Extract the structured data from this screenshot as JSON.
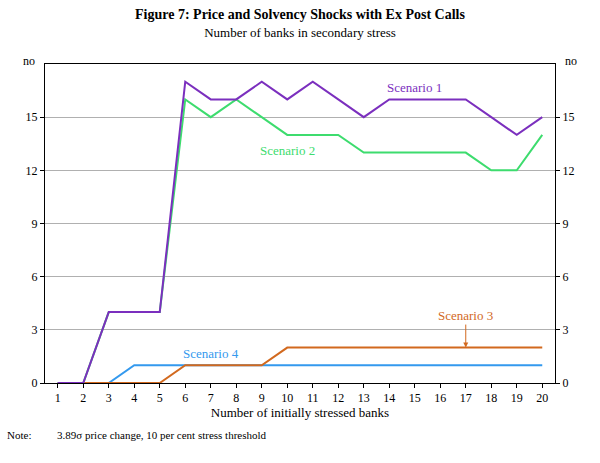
{
  "chart_data": {
    "type": "line",
    "title": "Figure 7: Price and Solvency Shocks with Ex Post Calls",
    "subtitle": "Number of banks in secondary stress",
    "x_label": "Number of initially stressed banks",
    "y_label": "no",
    "y2_label": "no",
    "note_label": "Note:",
    "note": "3.89σ price change, 10 per cent stress threshold",
    "x": [
      1,
      2,
      3,
      4,
      5,
      6,
      7,
      8,
      9,
      10,
      11,
      12,
      13,
      14,
      15,
      16,
      17,
      18,
      19,
      20
    ],
    "xlim": [
      0.5,
      20.5
    ],
    "xticks": [
      1,
      2,
      3,
      4,
      5,
      6,
      7,
      8,
      9,
      10,
      11,
      12,
      13,
      14,
      15,
      16,
      17,
      18,
      19,
      20
    ],
    "ylim": [
      0,
      18
    ],
    "yticks": [
      0,
      3,
      6,
      9,
      12,
      15
    ],
    "y2lim": [
      0,
      18
    ],
    "y2ticks": [
      0,
      3,
      6,
      9,
      12,
      15
    ],
    "grid": true,
    "series": [
      {
        "name": "Scenario 1",
        "color": "#7B2FBE",
        "values": [
          0,
          0,
          4,
          4,
          4,
          17,
          16,
          16,
          17,
          16,
          17,
          16,
          15,
          16,
          16,
          16,
          16,
          15,
          14,
          15
        ]
      },
      {
        "name": "Scenario 2",
        "color": "#3DDC6E",
        "values": [
          0,
          0,
          4,
          4,
          4,
          16,
          15,
          16,
          15,
          14,
          14,
          14,
          13,
          13,
          13,
          13,
          13,
          12,
          12,
          14
        ]
      },
      {
        "name": "Scenario 3",
        "color": "#D2691E",
        "values": [
          0,
          0,
          0,
          0,
          0,
          1,
          1,
          1,
          1,
          2,
          2,
          2,
          2,
          2,
          2,
          2,
          2,
          2,
          2,
          2
        ]
      },
      {
        "name": "Scenario 4",
        "color": "#3399EE",
        "values": [
          0,
          0,
          0,
          1,
          1,
          1,
          1,
          1,
          1,
          1,
          1,
          1,
          1,
          1,
          1,
          1,
          1,
          1,
          1,
          1
        ]
      }
    ]
  }
}
